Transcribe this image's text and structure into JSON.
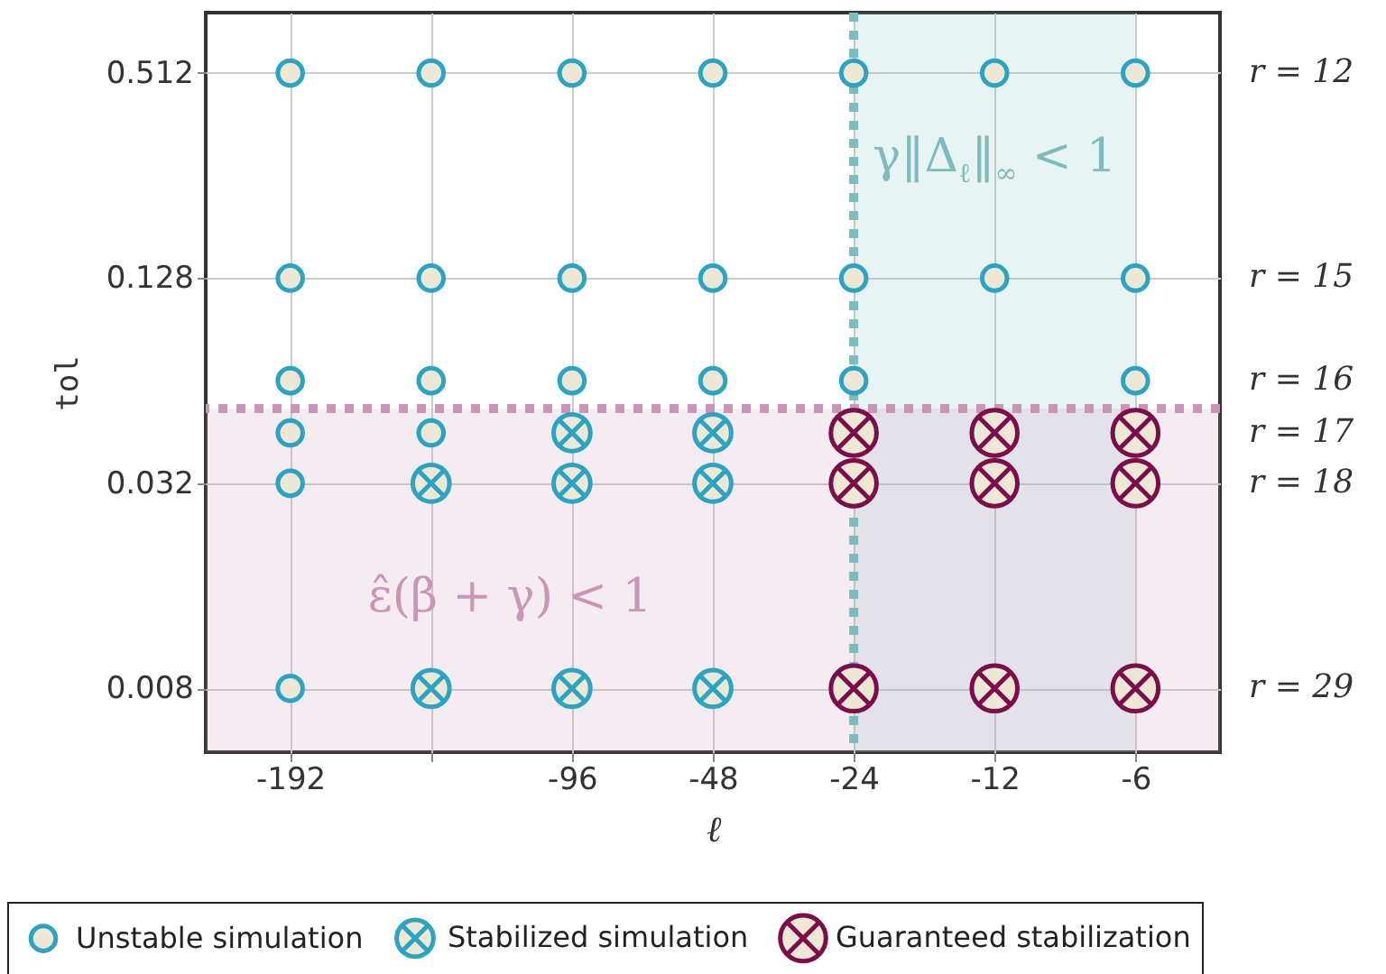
{
  "chart_data": {
    "type": "scatter",
    "xlabel": "ℓ",
    "ylabel": "tol",
    "log": "y",
    "grid": true,
    "legend": "bottom",
    "categories": [
      "-192",
      null,
      "-96",
      "-48",
      "-24",
      "-12",
      "-6"
    ],
    "ylim": [
      0.0052,
      0.77
    ],
    "yticks": [
      0.008,
      0.032,
      0.128,
      0.512
    ],
    "annotations": [
      "r = 12",
      "r = 15",
      "r = 16",
      "r = 17",
      "r = 18",
      "r = 29"
    ],
    "series": [
      {
        "name": "Unstable simulation",
        "color": "#2ba3c3",
        "marker": "circle",
        "x": [
          "-192",
          null,
          "-96",
          "-48",
          "-24",
          "-12",
          "-6",
          "-192",
          null,
          "-96",
          "-48",
          "-24",
          "-12",
          "-6",
          "-192",
          null,
          "-96",
          "-48",
          "-24",
          "-6",
          "-192",
          null,
          "-192",
          "-192"
        ],
        "values": [
          0.512,
          0.512,
          0.512,
          0.512,
          0.512,
          0.512,
          0.512,
          0.128,
          0.128,
          0.128,
          0.128,
          0.128,
          0.128,
          0.128,
          0.064,
          0.064,
          0.064,
          0.064,
          0.064,
          0.064,
          0.045,
          0.045,
          0.032,
          0.008
        ]
      },
      {
        "name": "Stabilized simulation",
        "color": "#2ba3c3",
        "marker": "cross",
        "x": [
          "-96",
          "-48",
          null,
          "-96",
          "-48",
          null,
          "-96",
          "-48"
        ],
        "values": [
          0.045,
          0.045,
          0.032,
          0.032,
          0.032,
          0.008,
          0.008,
          0.008
        ]
      },
      {
        "name": "Guaranteed stabilization",
        "color": "#7b0d4b",
        "marker": "cross",
        "x": [
          "-24",
          "-12",
          "-6",
          "-24",
          "-12",
          "-6",
          "-24",
          "-12",
          "-6"
        ],
        "values": [
          0.045,
          0.045,
          0.045,
          0.032,
          0.032,
          0.032,
          0.008,
          0.008,
          0.008
        ]
      }
    ],
    "ref_lines": [
      {
        "axis": "x",
        "value": "-24",
        "color": "#7dbcbc",
        "line_style": "dotted"
      },
      {
        "axis": "y",
        "value": 0.053,
        "color": "#c996b8",
        "line_style": "dotted"
      }
    ],
    "bands": [
      {
        "axis": "x",
        "from": "-24",
        "to": "-6",
        "label": "γ‖Δ$_{ℓ}$‖$_{∞}$ < 1",
        "color": "#7dbcbc"
      },
      {
        "axis": "y",
        "from": 0.0052,
        "to": 0.053,
        "label": "ε̂(β + γ) < 1",
        "color": "#c996b8"
      }
    ]
  }
}
